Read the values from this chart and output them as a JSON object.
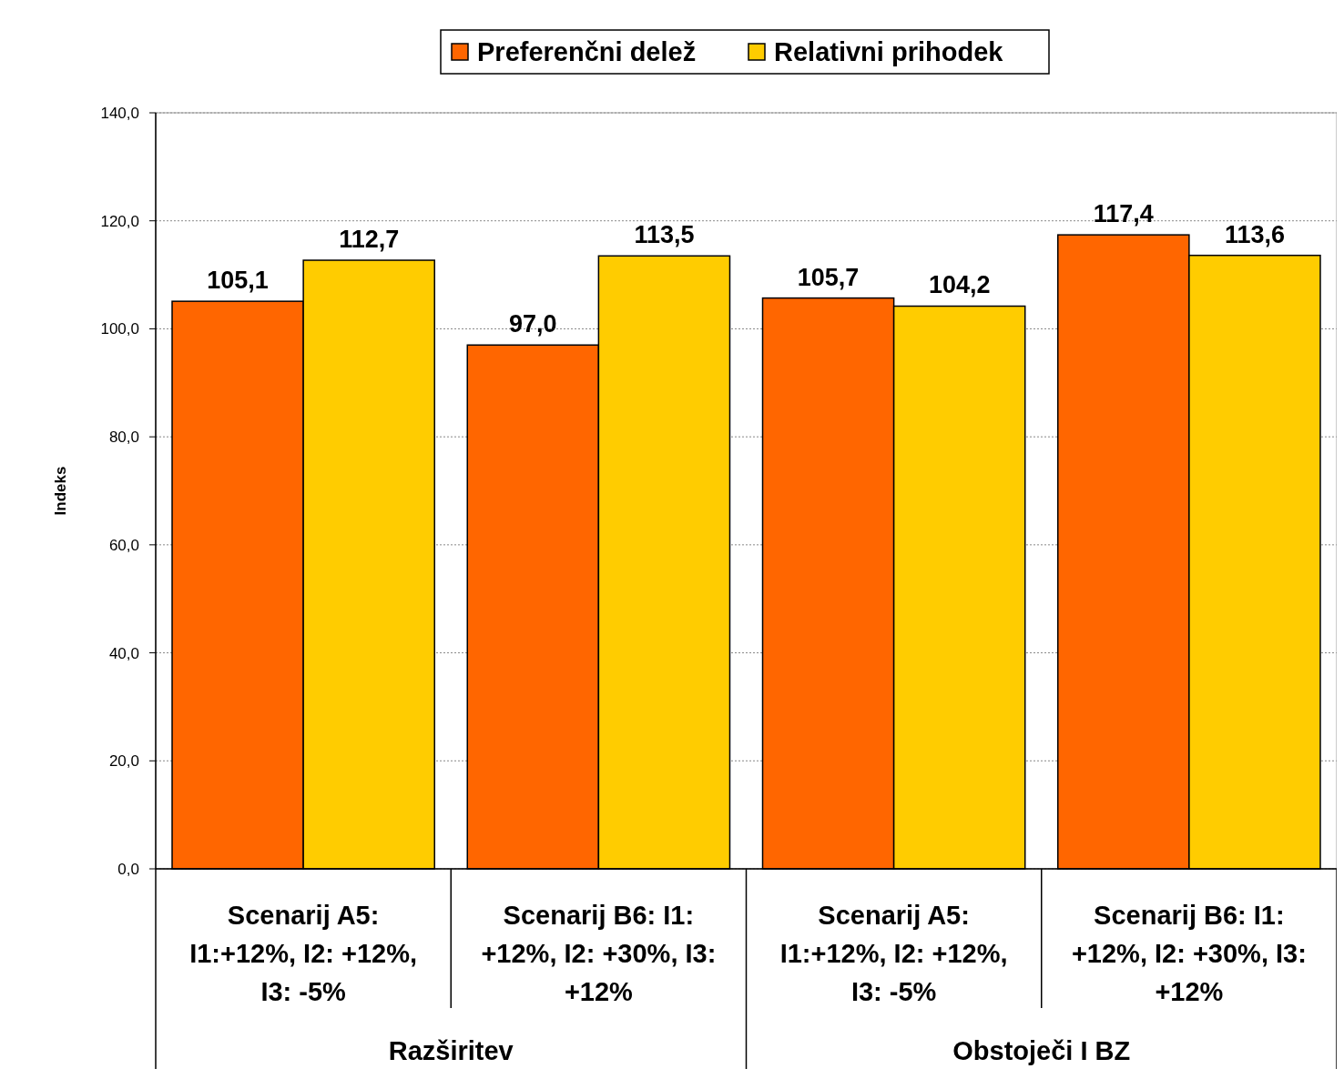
{
  "chart_data": {
    "type": "bar",
    "ylabel": "Indeks",
    "categories": [
      "Scenarij A5:\nI1:+12%, I2: +12%,\nI3: -5%",
      "Scenarij B6: I1:\n+12%, I2: +30%, I3:\n+12%",
      "Scenarij A5:\nI1:+12%, I2: +12%,\nI3: -5%",
      "Scenarij B6: I1:\n+12%, I2: +30%, I3:\n+12%"
    ],
    "series": [
      {
        "name": "Preferenčni delež",
        "color": "#ff6600",
        "values": [
          105.1,
          97.0,
          105.7,
          117.4
        ],
        "value_labels": [
          "105,1",
          "97,0",
          "105,7",
          "117,4"
        ]
      },
      {
        "name": "Relativni prihodek",
        "color": "#ffcc00",
        "values": [
          112.7,
          113.5,
          104.2,
          113.6
        ],
        "value_labels": [
          "112,7",
          "113,5",
          "104,2",
          "113,6"
        ]
      }
    ],
    "annotations": [
      "Razširitev",
      "Obstoječi I BZ"
    ],
    "ylim": [
      0,
      140
    ],
    "yticks": [
      {
        "value": 0,
        "label": "0,0"
      },
      {
        "value": 20,
        "label": "20,0"
      },
      {
        "value": 40,
        "label": "40,0"
      },
      {
        "value": 60,
        "label": "60,0"
      },
      {
        "value": 80,
        "label": "80,0"
      },
      {
        "value": 100,
        "label": "100,0"
      },
      {
        "value": 120,
        "label": "120,0"
      },
      {
        "value": 140,
        "label": "140,0"
      }
    ],
    "grid": "y",
    "legend": "top"
  }
}
